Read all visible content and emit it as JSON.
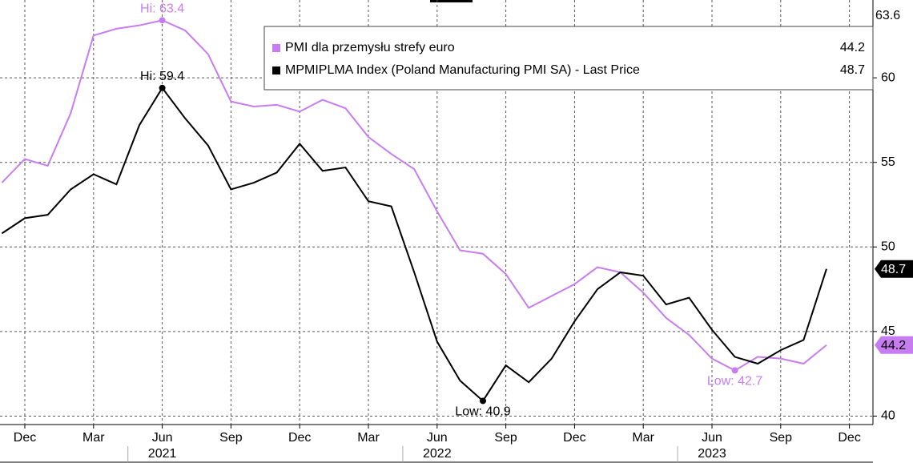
{
  "chart_data": {
    "type": "line",
    "categories": [
      null,
      "Dec",
      null,
      null,
      "Mar",
      null,
      null,
      "Jun",
      null,
      null,
      "Sep",
      null,
      null,
      "Dec",
      null,
      null,
      "Mar",
      null,
      null,
      "Jun",
      null,
      null,
      "Sep",
      null,
      null,
      "Dec",
      null,
      null,
      "Mar",
      null,
      null,
      "Jun",
      null,
      null,
      "Sep",
      null,
      null,
      "Dec"
    ],
    "years": [
      "2021",
      "2022",
      "2023"
    ],
    "series": [
      {
        "name": "PMI dla przemysłu strefy euro",
        "color": "#c77df0",
        "hi_label": "Hi: 63.4",
        "low_label": "Low: 42.7",
        "values": [
          53.8,
          55.2,
          54.8,
          57.9,
          62.5,
          62.9,
          63.1,
          63.4,
          62.8,
          61.4,
          58.6,
          58.3,
          58.4,
          58.0,
          58.7,
          58.2,
          56.5,
          55.5,
          54.6,
          52.1,
          49.8,
          49.6,
          48.4,
          46.4,
          47.1,
          47.8,
          48.8,
          48.5,
          47.3,
          45.8,
          44.8,
          43.4,
          42.7,
          43.5,
          43.4,
          43.1,
          44.2,
          null
        ]
      },
      {
        "name": "MPMIPLMA Index (Poland Manufacturing PMI SA) - Last Price",
        "color": "#000000",
        "hi_label": "Hi: 59.4",
        "low_label": "Low: 40.9",
        "values": [
          50.8,
          51.7,
          51.9,
          53.4,
          54.3,
          53.7,
          57.2,
          59.4,
          57.6,
          56.0,
          53.4,
          53.8,
          54.4,
          56.1,
          54.5,
          54.7,
          52.7,
          52.4,
          48.5,
          44.4,
          42.1,
          40.9,
          43.0,
          42.0,
          43.4,
          45.6,
          47.5,
          48.5,
          48.3,
          46.6,
          47.0,
          45.1,
          43.5,
          43.1,
          43.9,
          44.5,
          48.7,
          null
        ]
      }
    ],
    "ylim": [
      39.5,
      64.6
    ],
    "yticks": [
      40,
      45,
      50,
      55,
      60
    ],
    "y_axis_top_label": "63.6",
    "grid": true
  }
}
